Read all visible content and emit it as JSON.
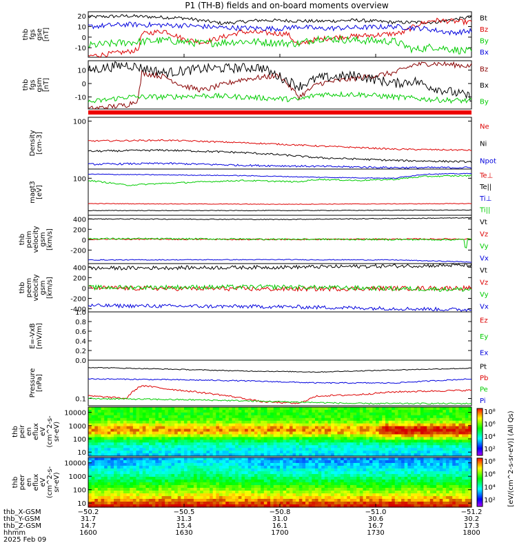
{
  "title": "P1 (TH-B) fields and on-board moments overview",
  "chart_data": [
    {
      "id": "p1",
      "type": "line",
      "ylabel": [
        "thb",
        "fgs",
        "gse",
        "[nT]"
      ],
      "yticks": [
        20,
        10,
        0,
        -10
      ],
      "ylim": [
        -19,
        24
      ],
      "series": [
        {
          "name": "Bt",
          "color": "#000000",
          "anchors": [
            [
              0,
              19
            ],
            [
              0.1,
              20
            ],
            [
              0.25,
              18
            ],
            [
              0.35,
              13
            ],
            [
              0.45,
              16
            ],
            [
              0.6,
              15
            ],
            [
              0.7,
              16
            ],
            [
              0.8,
              14
            ],
            [
              0.9,
              14
            ],
            [
              1,
              19
            ]
          ],
          "noise": 0.8
        },
        {
          "name": "Bz",
          "color": "#dd0000",
          "anchors": [
            [
              0,
              -18
            ],
            [
              0.1,
              -14
            ],
            [
              0.13,
              -12
            ],
            [
              0.14,
              3
            ],
            [
              0.2,
              6
            ],
            [
              0.25,
              -2
            ],
            [
              0.3,
              -5
            ],
            [
              0.4,
              5
            ],
            [
              0.52,
              3
            ],
            [
              0.55,
              -8
            ],
            [
              0.58,
              -3
            ],
            [
              0.65,
              0
            ],
            [
              0.75,
              2
            ],
            [
              0.82,
              4
            ],
            [
              0.86,
              12
            ],
            [
              0.9,
              16
            ],
            [
              1,
              14
            ]
          ],
          "noise": 1.2
        },
        {
          "name": "By",
          "color": "#00cc00",
          "anchors": [
            [
              0,
              -8
            ],
            [
              0.1,
              -5
            ],
            [
              0.2,
              -3
            ],
            [
              0.3,
              -6
            ],
            [
              0.4,
              -4
            ],
            [
              0.55,
              -6
            ],
            [
              0.6,
              -1
            ],
            [
              0.7,
              -3
            ],
            [
              0.8,
              -4
            ],
            [
              0.85,
              -12
            ],
            [
              0.9,
              -9
            ],
            [
              1,
              -14
            ]
          ],
          "noise": 1.8
        },
        {
          "name": "Bx",
          "color": "#0000dd",
          "anchors": [
            [
              0,
              10
            ],
            [
              0.1,
              12
            ],
            [
              0.25,
              11
            ],
            [
              0.35,
              9
            ],
            [
              0.5,
              8
            ],
            [
              0.55,
              10
            ],
            [
              0.6,
              8
            ],
            [
              0.7,
              9
            ],
            [
              0.8,
              10
            ],
            [
              0.88,
              8
            ],
            [
              0.95,
              4
            ],
            [
              1,
              6
            ]
          ],
          "noise": 1.2
        }
      ]
    },
    {
      "id": "p2",
      "type": "line",
      "ylabel": [
        "thb",
        "fgs",
        "gsm",
        "[nT]"
      ],
      "yticks": [
        10,
        0,
        -10
      ],
      "ylim": [
        -19,
        17
      ],
      "series": [
        {
          "name": "Bz",
          "color": "#880000",
          "anchors": [
            [
              0,
              -19
            ],
            [
              0.1,
              -16
            ],
            [
              0.13,
              -12
            ],
            [
              0.14,
              8
            ],
            [
              0.2,
              5
            ],
            [
              0.25,
              -2
            ],
            [
              0.3,
              -5
            ],
            [
              0.4,
              3
            ],
            [
              0.5,
              6
            ],
            [
              0.55,
              -10
            ],
            [
              0.6,
              0
            ],
            [
              0.7,
              4
            ],
            [
              0.8,
              8
            ],
            [
              0.85,
              14
            ],
            [
              0.9,
              15
            ],
            [
              1,
              13
            ]
          ],
          "noise": 1.0
        },
        {
          "name": "Bx",
          "color": "#000000",
          "anchors": [
            [
              0,
              10
            ],
            [
              0.1,
              14
            ],
            [
              0.2,
              8
            ],
            [
              0.3,
              11
            ],
            [
              0.45,
              12
            ],
            [
              0.55,
              -2
            ],
            [
              0.6,
              4
            ],
            [
              0.7,
              6
            ],
            [
              0.8,
              0
            ],
            [
              0.85,
              2
            ],
            [
              0.9,
              -3
            ],
            [
              1,
              -10
            ]
          ],
          "noise": 1.8
        },
        {
          "name": "By",
          "color": "#00cc00",
          "anchors": [
            [
              0,
              -14
            ],
            [
              0.1,
              -10
            ],
            [
              0.2,
              -10
            ],
            [
              0.3,
              -9
            ],
            [
              0.4,
              -10
            ],
            [
              0.55,
              -12
            ],
            [
              0.6,
              -8
            ],
            [
              0.7,
              -8
            ],
            [
              0.8,
              -10
            ],
            [
              0.9,
              -12
            ],
            [
              1,
              -13
            ]
          ],
          "noise": 1.0
        }
      ]
    },
    {
      "id": "p4",
      "type": "line",
      "scale": "log",
      "ylabel": [
        "Density",
        "[cm-3]"
      ],
      "yticks": [
        100
      ],
      "ylim": [
        0.6,
        150
      ],
      "series": [
        {
          "name": "Ne",
          "color": "#dd0000",
          "anchors": [
            [
              0,
              12
            ],
            [
              0.2,
              13
            ],
            [
              0.4,
              10
            ],
            [
              0.6,
              7
            ],
            [
              0.8,
              5
            ],
            [
              1,
              4.5
            ]
          ],
          "noise": 0.08
        },
        {
          "name": "Ni",
          "color": "#000000",
          "anchors": [
            [
              0,
              4
            ],
            [
              0.2,
              4.5
            ],
            [
              0.4,
              3.5
            ],
            [
              0.6,
              2
            ],
            [
              0.8,
              1.5
            ],
            [
              1,
              1.3
            ]
          ],
          "noise": 0.1
        },
        {
          "name": "Npot",
          "color": "#0000dd",
          "anchors": [
            [
              0,
              1.0
            ],
            [
              0.2,
              1.1
            ],
            [
              0.4,
              0.9
            ],
            [
              0.6,
              0.8
            ],
            [
              0.8,
              0.7
            ],
            [
              1,
              0.7
            ]
          ],
          "noise": 0.1
        }
      ]
    },
    {
      "id": "p5",
      "type": "line",
      "scale": "log",
      "ylabel": [
        "magt3",
        "[eV]"
      ],
      "yticks": [
        100
      ],
      "ylim": [
        2.5,
        250
      ],
      "series": [
        {
          "name": "Te⊥",
          "color": "#dd0000",
          "anchors": [
            [
              0,
              8
            ],
            [
              0.5,
              7.5
            ],
            [
              1,
              8
            ]
          ],
          "noise": 0.03
        },
        {
          "name": "Te||",
          "color": "#000000",
          "anchors": [
            [
              0,
              4
            ],
            [
              0.5,
              4
            ],
            [
              1,
              4.2
            ]
          ],
          "noise": 0.03
        },
        {
          "name": "Ti⊥",
          "color": "#0000dd",
          "anchors": [
            [
              0,
              150
            ],
            [
              0.2,
              140
            ],
            [
              0.4,
              130
            ],
            [
              0.6,
              110
            ],
            [
              0.8,
              100
            ],
            [
              0.88,
              150
            ],
            [
              1,
              160
            ]
          ],
          "noise": 0.04
        },
        {
          "name": "Ti||",
          "color": "#00cc00",
          "anchors": [
            [
              0,
              80
            ],
            [
              0.1,
              50
            ],
            [
              0.2,
              60
            ],
            [
              0.3,
              70
            ],
            [
              0.4,
              80
            ],
            [
              0.55,
              70
            ],
            [
              0.6,
              90
            ],
            [
              0.7,
              80
            ],
            [
              0.8,
              90
            ],
            [
              0.88,
              120
            ],
            [
              1,
              130
            ]
          ],
          "noise": 0.07
        }
      ]
    },
    {
      "id": "p6",
      "type": "line",
      "ylabel": [
        "thb",
        "peim",
        "velocity",
        "gsm",
        "[km/s]"
      ],
      "yticks": [
        400,
        200,
        0,
        -200
      ],
      "ylim": [
        -460,
        470
      ],
      "series": [
        {
          "name": "Vt",
          "color": "#000000",
          "anchors": [
            [
              0,
              400
            ],
            [
              0.5,
              390
            ],
            [
              1,
              420
            ]
          ],
          "noise": 4
        },
        {
          "name": "Vz",
          "color": "#dd0000",
          "anchors": [
            [
              0,
              10
            ],
            [
              0.5,
              5
            ],
            [
              1,
              15
            ]
          ],
          "noise": 6
        },
        {
          "name": "Vy",
          "color": "#00cc00",
          "anchors": [
            [
              0,
              20
            ],
            [
              0.5,
              10
            ],
            [
              0.98,
              0
            ],
            [
              0.985,
              -230
            ],
            [
              0.99,
              20
            ],
            [
              1,
              10
            ]
          ],
          "noise": 8
        },
        {
          "name": "Vx",
          "color": "#0000dd",
          "anchors": [
            [
              0,
              -390
            ],
            [
              0.5,
              -385
            ],
            [
              0.8,
              -390
            ],
            [
              0.9,
              -410
            ],
            [
              1,
              -430
            ]
          ],
          "noise": 4
        }
      ]
    },
    {
      "id": "p7",
      "type": "line",
      "ylabel": [
        "thb",
        "peem",
        "velocity",
        "gsm",
        "[km/s]"
      ],
      "yticks": [
        400,
        200,
        0,
        -200,
        -400
      ],
      "ylim": [
        -460,
        470
      ],
      "series": [
        {
          "name": "Vt",
          "color": "#000000",
          "anchors": [
            [
              0,
              380
            ],
            [
              0.5,
              400
            ],
            [
              1,
              440
            ]
          ],
          "noise": 18
        },
        {
          "name": "Vz",
          "color": "#dd0000",
          "anchors": [
            [
              0,
              0
            ],
            [
              0.5,
              -20
            ],
            [
              1,
              0
            ]
          ],
          "noise": 22
        },
        {
          "name": "Vy",
          "color": "#00cc00",
          "anchors": [
            [
              0,
              10
            ],
            [
              0.5,
              20
            ],
            [
              1,
              -30
            ]
          ],
          "noise": 22
        },
        {
          "name": "Vx",
          "color": "#0000dd",
          "anchors": [
            [
              0,
              -340
            ],
            [
              0.5,
              -360
            ],
            [
              1,
              -420
            ]
          ],
          "noise": 18
        }
      ]
    },
    {
      "id": "p8",
      "type": "line",
      "empty": true,
      "ylabel": [
        "E=-VxB",
        "[mV/m]"
      ],
      "yticks": [
        "1.0",
        "0.8",
        "0.6",
        "0.4",
        "0.2",
        "0.0"
      ],
      "ylim": [
        0,
        1
      ],
      "series": [
        {
          "name": "Ez",
          "color": "#dd0000"
        },
        {
          "name": "Ey",
          "color": "#00cc00"
        },
        {
          "name": "Ex",
          "color": "#0000dd"
        }
      ]
    },
    {
      "id": "p9",
      "type": "line",
      "scale": "log",
      "ylabel": [
        "Pressure",
        "[nPa]"
      ],
      "yticks": [
        0.1
      ],
      "ylim": [
        0.06,
        1.5
      ],
      "series": [
        {
          "name": "Pt",
          "color": "#000000",
          "anchors": [
            [
              0,
              0.9
            ],
            [
              0.2,
              0.8
            ],
            [
              0.4,
              0.7
            ],
            [
              0.6,
              0.65
            ],
            [
              0.8,
              0.75
            ],
            [
              1,
              0.85
            ]
          ],
          "noise": 0.03
        },
        {
          "name": "Pb",
          "color": "#dd0000",
          "anchors": [
            [
              0,
              0.12
            ],
            [
              0.1,
              0.1
            ],
            [
              0.14,
              0.25
            ],
            [
              0.2,
              0.2
            ],
            [
              0.3,
              0.15
            ],
            [
              0.45,
              0.08
            ],
            [
              0.55,
              0.07
            ],
            [
              0.6,
              0.12
            ],
            [
              0.7,
              0.13
            ],
            [
              0.8,
              0.16
            ],
            [
              1,
              0.18
            ]
          ],
          "noise": 0.06
        },
        {
          "name": "Pe",
          "color": "#00cc00",
          "anchors": [
            [
              0,
              0.1
            ],
            [
              0.3,
              0.09
            ],
            [
              0.5,
              0.08
            ],
            [
              0.7,
              0.07
            ],
            [
              1,
              0.07
            ]
          ],
          "noise": 0.05
        },
        {
          "name": "Pi",
          "color": "#0000dd",
          "anchors": [
            [
              0,
              0.4
            ],
            [
              0.2,
              0.38
            ],
            [
              0.4,
              0.35
            ],
            [
              0.6,
              0.3
            ],
            [
              0.8,
              0.3
            ],
            [
              1,
              0.4
            ]
          ],
          "noise": 0.04
        }
      ]
    },
    {
      "id": "p10",
      "type": "heatmap",
      "scale": "log",
      "ylabel": [
        "thb",
        "peir",
        "en",
        "eflux",
        "eV",
        "(cm^2-s-",
        "sr-eV)"
      ],
      "yticks": [
        10000,
        1000,
        100,
        10
      ],
      "ytick_labels": [
        "10000",
        "1000",
        "100",
        "10"
      ],
      "ylim": [
        5,
        25000
      ]
    },
    {
      "id": "p11",
      "type": "heatmap",
      "scale": "log",
      "ylabel": [
        "thb",
        "peer",
        "en",
        "eflux",
        "eV",
        "(cm^2-s-",
        "sr-eV)"
      ],
      "yticks": [
        10000,
        1000,
        100,
        10
      ],
      "ytick_labels": [
        "10000",
        "1000",
        "100",
        "10"
      ],
      "ylim": [
        5,
        25000
      ]
    }
  ],
  "colorbar_labels": [
    "10⁸",
    "10⁶",
    "10⁴",
    "10²"
  ],
  "colorbar_title": "[eV/(cm^2-s-sr-eV)] (All Qs)",
  "x_axis": {
    "row_labels": [
      "thb_X-GSM",
      "thb_Y-GSM",
      "thb_Z-GSM",
      "hhmm",
      "2025 Feb 09"
    ],
    "columns": [
      [
        "−50.2",
        "31.7",
        "14.7",
        "1600"
      ],
      [
        "−50.5",
        "31.3",
        "15.4",
        "1630"
      ],
      [
        "−50.8",
        "31.0",
        "16.1",
        "1700"
      ],
      [
        "−51.0",
        "30.6",
        "16.7",
        "1730"
      ],
      [
        "−51.2",
        "30.2",
        "17.3",
        "1800"
      ]
    ]
  }
}
